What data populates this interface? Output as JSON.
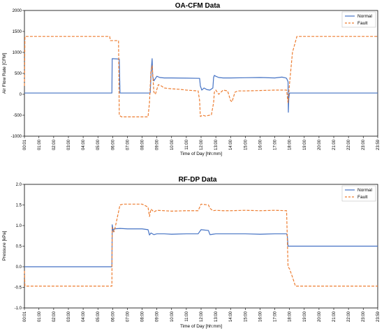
{
  "chart_data": [
    {
      "type": "line",
      "title": "OA-CFM Data",
      "xlabel": "Time of Day [hh:mm]",
      "ylabel": "Air Flow Rate [CFM]",
      "ylim": [
        -1000,
        2000
      ],
      "yticks": [
        "-1000",
        "-500",
        "0",
        "500",
        "1000",
        "1500",
        "2000"
      ],
      "xlim": [
        0.0167,
        23.983
      ],
      "xticks": [
        "00:01",
        "01:00",
        "02:00",
        "03:00",
        "04:00",
        "05:00",
        "06:00",
        "07:00",
        "08:00",
        "09:00",
        "10:00",
        "11:00",
        "12:00",
        "13:00",
        "14:00",
        "15:00",
        "16:00",
        "17:00",
        "18:00",
        "19:00",
        "20:00",
        "21:00",
        "22:00",
        "23:00",
        "23:59"
      ],
      "legend": "top-right",
      "grid": false,
      "series": [
        {
          "name": "Normal",
          "color": "#4472C4",
          "dash": "none",
          "x": [
            0.0167,
            5.95,
            5.97,
            6.45,
            6.5,
            8.55,
            8.62,
            8.68,
            8.72,
            8.8,
            9.0,
            9.2,
            9.5,
            10.0,
            11.0,
            11.9,
            11.95,
            12.05,
            12.2,
            12.4,
            12.6,
            12.8,
            12.85,
            12.9,
            13.0,
            13.2,
            13.5,
            14.0,
            15.0,
            16.0,
            17.0,
            17.5,
            17.6,
            17.7,
            17.8,
            17.9,
            17.92,
            17.95,
            18.0,
            23.983
          ],
          "y": [
            30,
            30,
            850,
            840,
            30,
            30,
            580,
            850,
            420,
            320,
            430,
            400,
            390,
            390,
            385,
            380,
            200,
            100,
            150,
            110,
            100,
            150,
            400,
            450,
            430,
            400,
            390,
            390,
            395,
            400,
            390,
            410,
            400,
            395,
            380,
            300,
            -430,
            -100,
            30,
            30
          ]
        },
        {
          "name": "Fault",
          "color": "#ED7D31",
          "dash": "4,2",
          "x": [
            0.0167,
            0.05,
            5.8,
            5.85,
            6.4,
            6.45,
            6.6,
            7.0,
            8.0,
            8.4,
            8.5,
            8.55,
            8.6,
            8.68,
            8.8,
            8.9,
            9.1,
            9.3,
            9.5,
            10.0,
            10.5,
            11.0,
            11.8,
            11.9,
            11.95,
            12.1,
            12.3,
            12.7,
            12.85,
            12.9,
            13.0,
            13.2,
            13.5,
            13.8,
            14.0,
            14.1,
            14.3,
            14.5,
            15.0,
            16.0,
            17.0,
            17.5,
            17.8,
            17.9,
            18.0,
            18.2,
            18.5,
            23.983
          ],
          "y": [
            200,
            1380,
            1380,
            1280,
            1280,
            -500,
            -540,
            -540,
            -540,
            -540,
            -200,
            200,
            550,
            680,
            50,
            0,
            230,
            200,
            150,
            130,
            120,
            100,
            80,
            -150,
            -530,
            -500,
            -520,
            -490,
            -200,
            50,
            100,
            0,
            100,
            80,
            -150,
            -180,
            50,
            80,
            80,
            90,
            100,
            100,
            100,
            -200,
            250,
            1000,
            1380,
            1380
          ]
        }
      ]
    },
    {
      "type": "line",
      "title": "RF-DP Data",
      "xlabel": "Time of Day [hh:mm]",
      "ylabel": "Pressure [kPa]",
      "ylim": [
        -1.0,
        2.0
      ],
      "yticks": [
        "-1.0",
        "-0.5",
        "0.0",
        "0.5",
        "1.0",
        "1.5",
        "2.0"
      ],
      "xlim": [
        0.0167,
        23.983
      ],
      "xticks": [
        "00:01",
        "01:00",
        "02:00",
        "03:00",
        "04:00",
        "05:00",
        "06:00",
        "07:00",
        "08:00",
        "09:00",
        "10:00",
        "11:00",
        "12:00",
        "13:00",
        "14:00",
        "15:00",
        "16:00",
        "17:00",
        "18:00",
        "19:00",
        "20:00",
        "21:00",
        "22:00",
        "23:00",
        "23:59"
      ],
      "legend": "top-right",
      "grid": false,
      "series": [
        {
          "name": "Normal",
          "color": "#4472C4",
          "dash": "none",
          "x": [
            0.0167,
            5.95,
            5.97,
            6.05,
            6.1,
            6.5,
            7.0,
            8.0,
            8.4,
            8.5,
            8.6,
            8.8,
            9.0,
            9.5,
            10.0,
            11.0,
            11.8,
            12.0,
            12.5,
            12.6,
            12.8,
            13.0,
            13.5,
            14.0,
            15.0,
            16.0,
            17.0,
            17.5,
            17.8,
            17.85,
            17.9,
            23.983
          ],
          "y": [
            0.0,
            0.0,
            1.02,
            0.85,
            0.92,
            0.93,
            0.92,
            0.92,
            0.9,
            0.77,
            0.82,
            0.78,
            0.8,
            0.8,
            0.79,
            0.8,
            0.8,
            0.9,
            0.88,
            0.78,
            0.79,
            0.8,
            0.8,
            0.8,
            0.8,
            0.79,
            0.8,
            0.8,
            0.8,
            0.75,
            0.5,
            0.5
          ]
        },
        {
          "name": "Fault",
          "color": "#ED7D31",
          "dash": "4,2",
          "x": [
            0.0167,
            0.05,
            5.95,
            5.97,
            6.1,
            6.2,
            6.5,
            6.7,
            7.0,
            8.0,
            8.4,
            8.5,
            8.6,
            8.8,
            9.0,
            9.5,
            10.0,
            11.0,
            11.8,
            12.0,
            12.5,
            12.6,
            12.8,
            13.0,
            13.5,
            14.0,
            15.0,
            16.0,
            17.0,
            17.8,
            17.9,
            18.0,
            18.2,
            18.4,
            23.983
          ],
          "y": [
            -0.1,
            -0.47,
            -0.47,
            0.95,
            0.85,
            1.0,
            1.5,
            1.52,
            1.52,
            1.52,
            1.45,
            1.22,
            1.4,
            1.33,
            1.37,
            1.36,
            1.35,
            1.36,
            1.36,
            1.52,
            1.5,
            1.42,
            1.36,
            1.37,
            1.36,
            1.36,
            1.37,
            1.36,
            1.37,
            1.36,
            0.0,
            -0.05,
            -0.25,
            -0.47,
            -0.47
          ]
        }
      ]
    }
  ]
}
